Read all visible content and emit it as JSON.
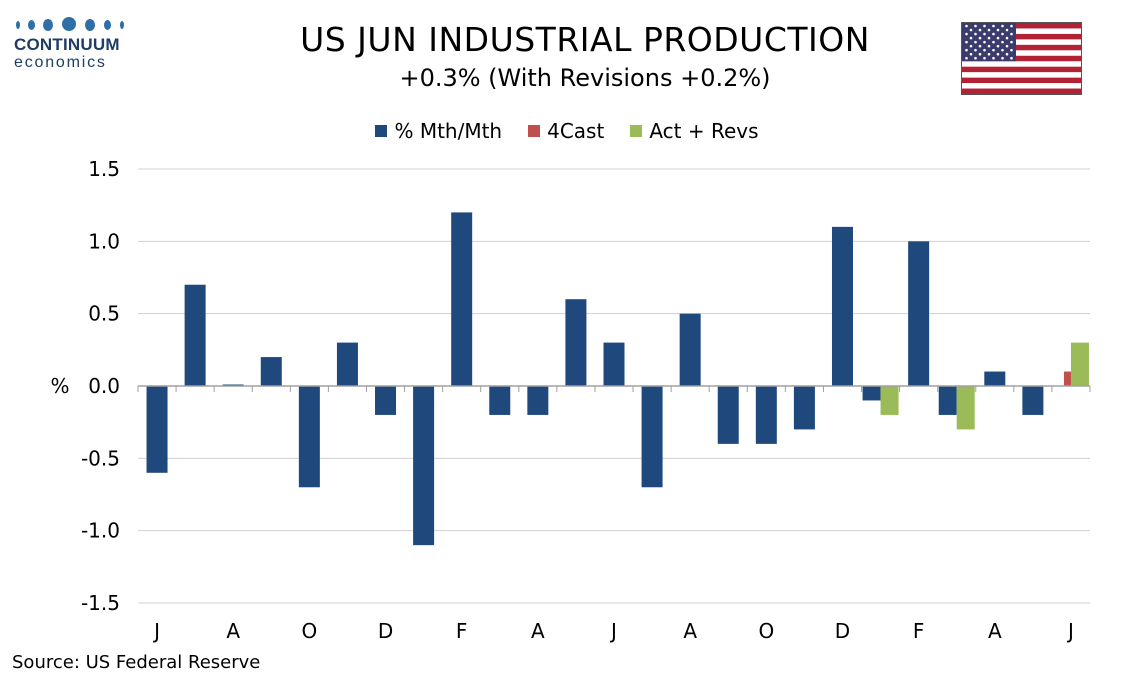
{
  "logo": {
    "name": "CONTINUUM",
    "sub": "economics"
  },
  "title": "US JUN INDUSTRIAL PRODUCTION",
  "subtitle": "+0.3% (With Revisions +0.2%)",
  "source": "Source: US Federal Reserve",
  "chart_data": {
    "type": "bar",
    "ylabel": "%",
    "ylim": [
      -1.5,
      1.5
    ],
    "yticks": [
      1.5,
      1.0,
      0.5,
      0.0,
      -0.5,
      -1.0,
      -1.5
    ],
    "ytick_labels": [
      "1.5",
      "1.0",
      "0.5",
      "0.0",
      "-0.5",
      "-1.0",
      "-1.5"
    ],
    "grid": true,
    "legend_position": "top-center",
    "x_tick_labels": [
      "J",
      "A",
      "O",
      "D",
      "F",
      "A",
      "J",
      "A",
      "O",
      "D",
      "F",
      "A",
      "J"
    ],
    "x_tick_every": 2,
    "series": [
      {
        "name": "% Mth/Mth",
        "color": "#1f497d",
        "values": [
          -0.6,
          0.7,
          0.0,
          0.2,
          -0.7,
          0.3,
          -0.2,
          -1.1,
          1.2,
          -0.2,
          -0.2,
          0.6,
          0.3,
          -0.7,
          0.5,
          -0.4,
          -0.4,
          -0.3,
          1.1,
          -0.1,
          1.0,
          -0.2,
          0.1,
          -0.2,
          null
        ]
      },
      {
        "name": "4Cast",
        "color": "#c0504d",
        "values": [
          null,
          null,
          null,
          null,
          null,
          null,
          null,
          null,
          null,
          null,
          null,
          null,
          null,
          null,
          null,
          null,
          null,
          null,
          null,
          null,
          null,
          null,
          null,
          null,
          0.1
        ]
      },
      {
        "name": "Act + Revs",
        "color": "#9bbb59",
        "values": [
          null,
          null,
          null,
          null,
          null,
          null,
          null,
          null,
          null,
          null,
          null,
          null,
          null,
          null,
          null,
          null,
          null,
          null,
          null,
          -0.2,
          null,
          -0.3,
          null,
          null,
          0.3
        ]
      }
    ]
  },
  "flag": {
    "stripe_red": "#b22234",
    "stripe_white": "#ffffff",
    "canton": "#3c3b6e",
    "star": "#ffffff"
  }
}
